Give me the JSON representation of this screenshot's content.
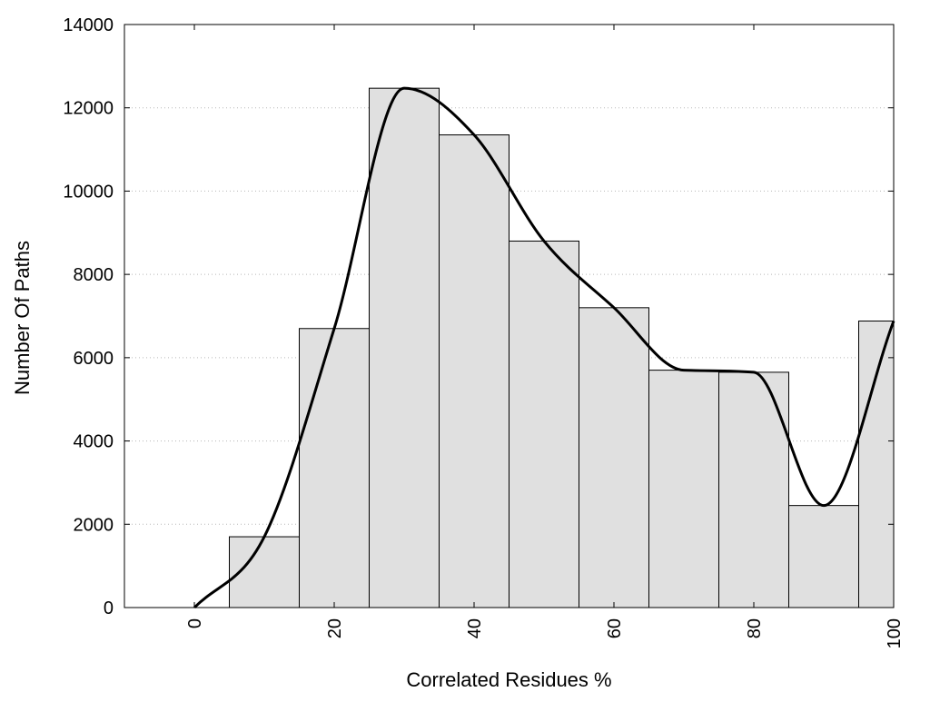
{
  "chart_data": {
    "type": "bar",
    "title": "",
    "xlabel": "Correlated Residues %",
    "ylabel": "Number Of Paths",
    "xlim": [
      -10,
      100
    ],
    "ylim": [
      0,
      14000
    ],
    "grid": "horizontal dotted",
    "x_ticks": [
      "0",
      "20",
      "40",
      "60",
      "80",
      "100"
    ],
    "y_ticks": [
      "0",
      "2000",
      "4000",
      "6000",
      "8000",
      "10000",
      "12000",
      "14000"
    ],
    "bar_color": "#e0e0e0",
    "bar_edge_color": "#000000",
    "line_color": "#000000",
    "bars": [
      {
        "x_start": 5,
        "x_end": 15,
        "value": 1700
      },
      {
        "x_start": 15,
        "x_end": 25,
        "value": 6700
      },
      {
        "x_start": 25,
        "x_end": 35,
        "value": 12470
      },
      {
        "x_start": 35,
        "x_end": 45,
        "value": 11350
      },
      {
        "x_start": 45,
        "x_end": 55,
        "value": 8800
      },
      {
        "x_start": 55,
        "x_end": 65,
        "value": 7200
      },
      {
        "x_start": 65,
        "x_end": 75,
        "value": 5700
      },
      {
        "x_start": 75,
        "x_end": 85,
        "value": 5650
      },
      {
        "x_start": 85,
        "x_end": 95,
        "value": 2450
      },
      {
        "x_start": 95,
        "x_end": 100,
        "value": 6880
      }
    ],
    "series": [
      {
        "type": "smooth-line",
        "x": [
          0,
          10,
          20,
          30,
          40,
          50,
          60,
          70,
          80,
          90,
          100
        ],
        "y": [
          0,
          1700,
          6700,
          12470,
          11350,
          8800,
          7200,
          5700,
          5650,
          2450,
          6880
        ]
      }
    ]
  }
}
